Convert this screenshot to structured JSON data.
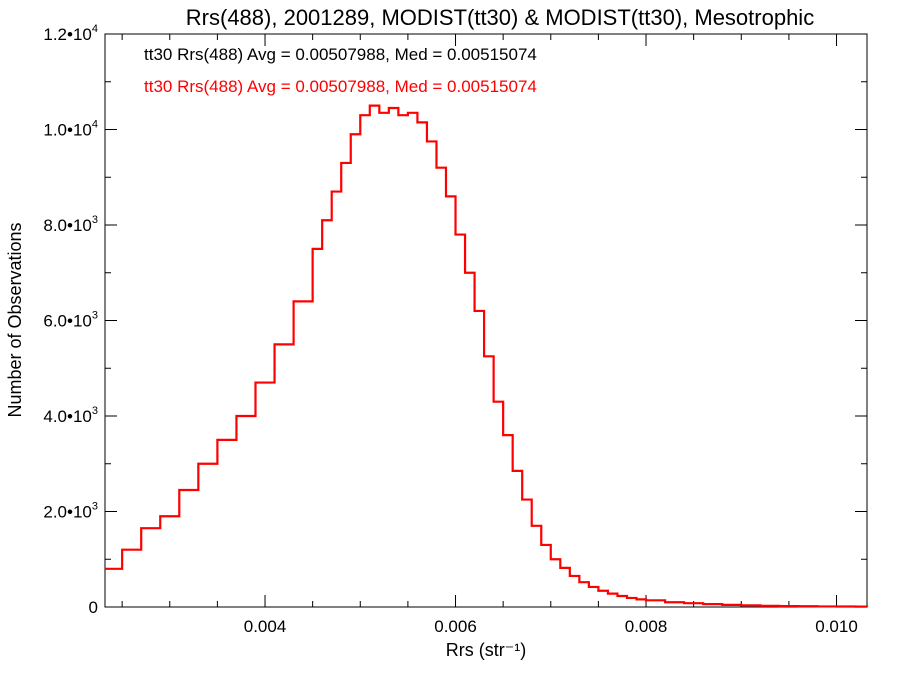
{
  "chart_data": {
    "type": "line",
    "title": "Rrs(488), 2001289, MODIST(tt30) & MODIST(tt30), Mesotrophic",
    "xlabel": "Rrs (str⁻¹)",
    "ylabel": "Number of Observations",
    "xlim": [
      0.00232,
      0.01032
    ],
    "ylim": [
      0,
      12000
    ],
    "grid": false,
    "x_ticks": [
      0.004,
      0.006,
      0.008,
      0.01
    ],
    "x_tick_labels": [
      "0.004",
      "0.006",
      "0.008",
      "0.010"
    ],
    "y_ticks": [
      {
        "value": 0,
        "mantissa": "0",
        "exponent": ""
      },
      {
        "value": 2000,
        "mantissa": "2.0•10",
        "exponent": "3"
      },
      {
        "value": 4000,
        "mantissa": "4.0•10",
        "exponent": "3"
      },
      {
        "value": 6000,
        "mantissa": "6.0•10",
        "exponent": "3"
      },
      {
        "value": 8000,
        "mantissa": "8.0•10",
        "exponent": "3"
      },
      {
        "value": 10000,
        "mantissa": "1.0•10",
        "exponent": "4"
      },
      {
        "value": 12000,
        "mantissa": "1.2•10",
        "exponent": "4"
      }
    ],
    "annotations": [
      {
        "text": "tt30 Rrs(488) Avg = 0.00507988, Med = 0.00515074",
        "color": "#000000"
      },
      {
        "text": "tt30 Rrs(488) Avg = 0.00507988, Med = 0.00515074",
        "color": "#ff0000"
      }
    ],
    "series": [
      {
        "color": "#ff0000",
        "style": "step",
        "x": [
          0.00232,
          0.0025,
          0.0027,
          0.0029,
          0.0031,
          0.0033,
          0.0035,
          0.0037,
          0.0039,
          0.0041,
          0.0043,
          0.0045,
          0.0046,
          0.0047,
          0.0048,
          0.0049,
          0.005,
          0.0051,
          0.0052,
          0.0053,
          0.0054,
          0.0055,
          0.0056,
          0.0057,
          0.0058,
          0.0059,
          0.006,
          0.0061,
          0.0062,
          0.0063,
          0.0064,
          0.0065,
          0.0066,
          0.0067,
          0.0068,
          0.0069,
          0.007,
          0.0071,
          0.0072,
          0.0073,
          0.0074,
          0.0075,
          0.0076,
          0.0077,
          0.0078,
          0.0079,
          0.008,
          0.0082,
          0.0084,
          0.0086,
          0.0088,
          0.009,
          0.0092,
          0.0094,
          0.0096,
          0.0098,
          0.01,
          0.0102,
          0.01032
        ],
        "values": [
          800,
          1200,
          1650,
          1900,
          2450,
          3000,
          3500,
          4000,
          4700,
          5500,
          6400,
          7500,
          8100,
          8700,
          9300,
          9900,
          10300,
          10500,
          10350,
          10450,
          10300,
          10350,
          10150,
          9750,
          9200,
          8600,
          7800,
          7000,
          6200,
          5250,
          4300,
          3600,
          2850,
          2250,
          1700,
          1300,
          1000,
          820,
          650,
          520,
          420,
          340,
          280,
          230,
          190,
          160,
          140,
          100,
          80,
          60,
          45,
          35,
          25,
          20,
          15,
          12,
          10,
          8,
          6
        ]
      }
    ]
  }
}
